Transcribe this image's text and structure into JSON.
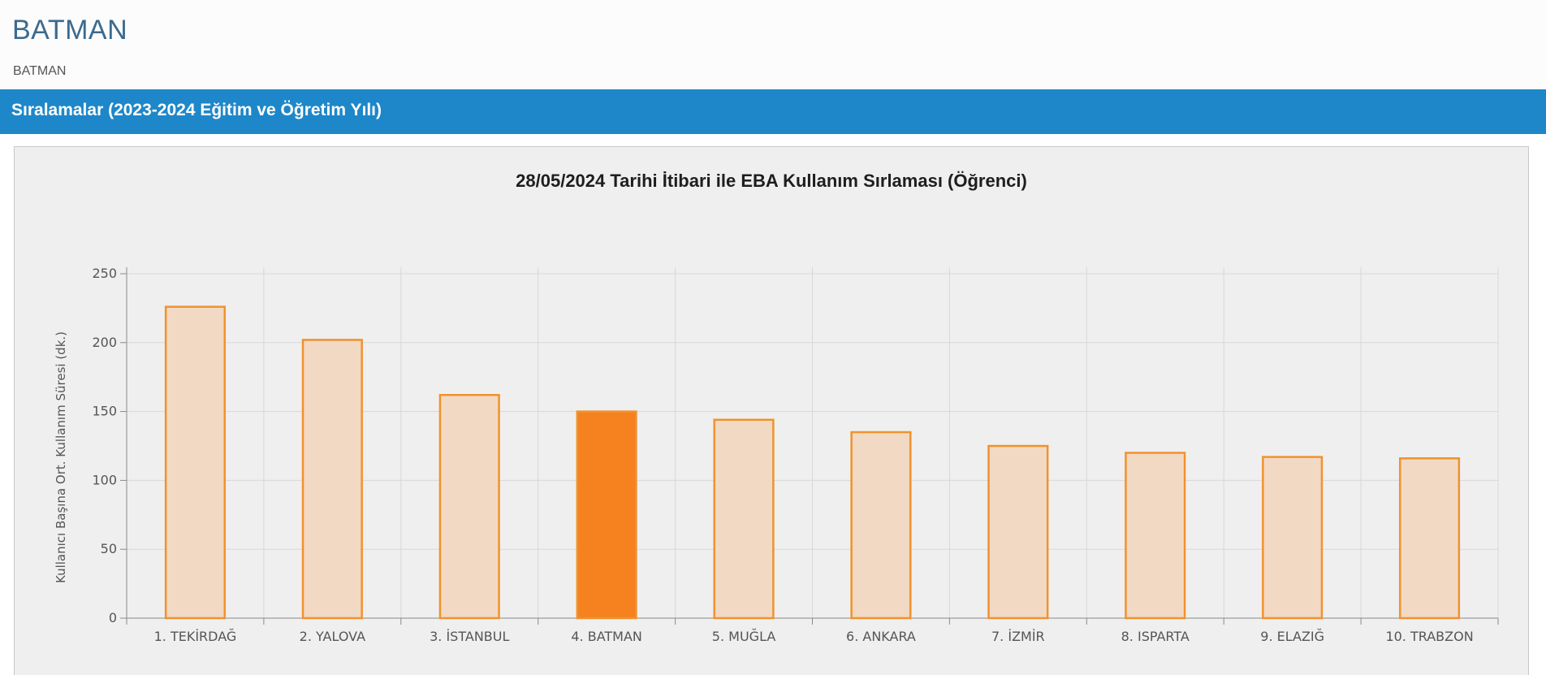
{
  "header": {
    "title": "BATMAN",
    "breadcrumb": "BATMAN"
  },
  "section": {
    "title": "Sıralamalar (2023-2024 Eğitim ve Öğretim Yılı)"
  },
  "chart_data": {
    "type": "bar",
    "title": "28/05/2024 Tarihi İtibari ile EBA Kullanım Sırlaması (Öğrenci)",
    "xlabel": "",
    "ylabel": "Kullanıcı Başına Ort. Kullanım Süresi (dk.)",
    "ylim": [
      0,
      250
    ],
    "yticks": [
      0,
      50,
      100,
      150,
      200,
      250
    ],
    "grid": true,
    "categories": [
      "1. TEKİRDAĞ",
      "2. YALOVA",
      "3. İSTANBUL",
      "4. BATMAN",
      "5. MUĞLA",
      "6. ANKARA",
      "7. İZMİR",
      "8. ISPARTA",
      "9. ELAZIĞ",
      "10. TRABZON"
    ],
    "values": [
      226,
      202,
      162,
      150,
      144,
      135,
      125,
      120,
      117,
      116
    ],
    "highlight": "4. BATMAN",
    "colors": {
      "bar_fill": "#f2d9c4",
      "bar_stroke": "#f0922e",
      "highlight_fill": "#f5821f",
      "grid": "#d8d8d8",
      "axis": "#8a8a8a"
    }
  }
}
